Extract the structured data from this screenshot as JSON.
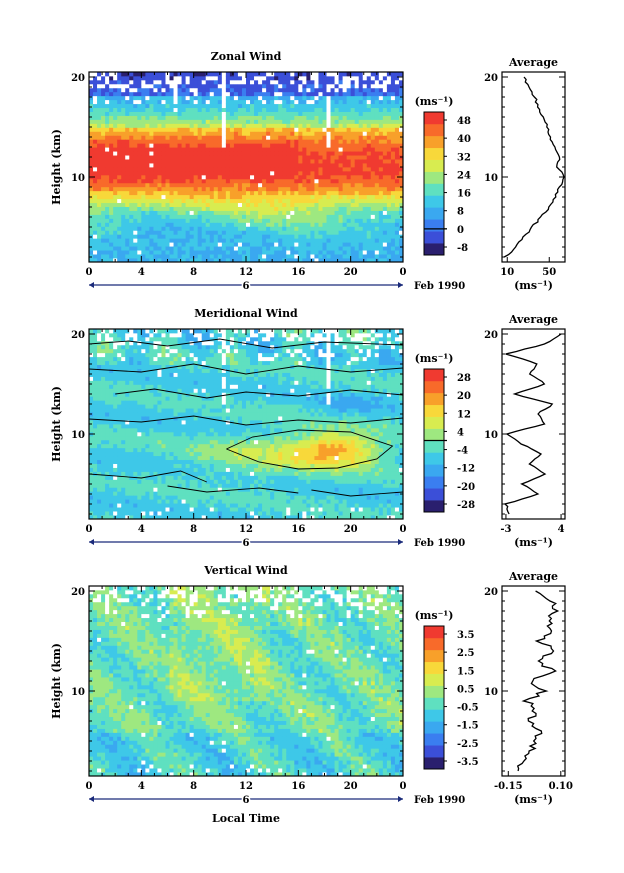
{
  "figure": {
    "xlabel": "Local Time",
    "date_label": "Feb 1990",
    "day_label": "6",
    "colorbar_unit": "(ms⁻¹)",
    "avg_title": "Average",
    "avg_unit": "(ms⁻¹)"
  },
  "chart_data": [
    {
      "type": "heatmap",
      "title": "Zonal Wind",
      "ylabel": "Height (km)",
      "x_ticks": [
        "0",
        "4",
        "8",
        "12",
        "16",
        "20",
        "0"
      ],
      "y_ticks": [
        "20",
        "10"
      ],
      "xlim": [
        0,
        24
      ],
      "ylim": [
        1.5,
        20.5
      ],
      "colorbar": {
        "ticks": [
          "48",
          "40",
          "32",
          "24",
          "16",
          "8",
          "0",
          "-8"
        ],
        "range": [
          -12,
          52
        ],
        "colors": [
          "#2a1f6e",
          "#3b4fd8",
          "#3a7ef0",
          "#3aa8f0",
          "#3ec8e8",
          "#5fe0c0",
          "#9ee880",
          "#d8ec50",
          "#f8d83a",
          "#f8a02a",
          "#f86a2a",
          "#f03a30"
        ]
      },
      "profile": {
        "x_ticks": [
          "10",
          "50"
        ],
        "xlim": [
          5,
          65
        ],
        "heights": [
          2,
          3,
          4,
          5,
          6,
          7,
          8,
          9,
          10,
          11,
          12,
          13,
          14,
          15,
          16,
          17,
          18,
          19,
          20
        ],
        "values": [
          8,
          18,
          26,
          34,
          42,
          50,
          56,
          60,
          64,
          58,
          60,
          56,
          50,
          48,
          44,
          40,
          36,
          30,
          26
        ]
      }
    },
    {
      "type": "heatmap",
      "title": "Meridional Wind",
      "ylabel": "Height (km)",
      "x_ticks": [
        "0",
        "4",
        "8",
        "12",
        "16",
        "20",
        "0"
      ],
      "y_ticks": [
        "20",
        "10"
      ],
      "xlim": [
        0,
        24
      ],
      "ylim": [
        1.5,
        20.5
      ],
      "colorbar": {
        "ticks": [
          "28",
          "20",
          "12",
          "4",
          "-4",
          "-12",
          "-20",
          "-28"
        ],
        "range": [
          -32,
          32
        ],
        "colors": [
          "#2a1f6e",
          "#3b4fd8",
          "#3a7ef0",
          "#3aa8f0",
          "#3ec8e8",
          "#5fe0c0",
          "#9ee880",
          "#d8ec50",
          "#f8d83a",
          "#f8a02a",
          "#f86a2a",
          "#f03a30"
        ]
      },
      "profile": {
        "x_ticks": [
          "-3",
          "4"
        ],
        "xlim": [
          -3.5,
          4.5
        ],
        "heights": [
          2,
          3,
          4,
          5,
          6,
          7,
          8,
          9,
          10,
          11,
          12,
          13,
          14,
          15,
          16,
          17,
          18,
          19,
          20
        ],
        "values": [
          -2.5,
          -3,
          1,
          -1,
          2,
          0,
          1.5,
          -1,
          -3,
          2,
          1,
          3,
          -2,
          2,
          0,
          1,
          -3,
          2,
          4
        ]
      }
    },
    {
      "type": "heatmap",
      "title": "Vertical Wind",
      "ylabel": "Height (km)",
      "x_ticks": [
        "0",
        "4",
        "8",
        "12",
        "16",
        "20",
        "0"
      ],
      "y_ticks": [
        "20",
        "10"
      ],
      "xlim": [
        0,
        24
      ],
      "ylim": [
        1.5,
        20.5
      ],
      "colorbar": {
        "ticks": [
          "3.5",
          "2.5",
          "1.5",
          "0.5",
          "-0.5",
          "-1.5",
          "-2.5",
          "-3.5"
        ],
        "range": [
          -4,
          4
        ],
        "colors": [
          "#2a1f6e",
          "#3b4fd8",
          "#3a7ef0",
          "#3aa8f0",
          "#3ec8e8",
          "#5fe0c0",
          "#9ee880",
          "#d8ec50",
          "#f8d83a",
          "#f8a02a",
          "#f86a2a",
          "#f03a30"
        ]
      },
      "profile": {
        "x_ticks": [
          "-0.15",
          "0.10"
        ],
        "xlim": [
          -0.18,
          0.12
        ],
        "heights": [
          2,
          3,
          4,
          5,
          6,
          7,
          8,
          9,
          10,
          11,
          12,
          13,
          14,
          15,
          16,
          17,
          18,
          19,
          20
        ],
        "values": [
          -0.12,
          -0.08,
          -0.04,
          -0.03,
          0.0,
          -0.05,
          -0.02,
          -0.06,
          0.02,
          -0.04,
          0.06,
          -0.02,
          0.08,
          0.0,
          0.06,
          0.04,
          0.08,
          0.05,
          -0.02
        ]
      }
    }
  ]
}
